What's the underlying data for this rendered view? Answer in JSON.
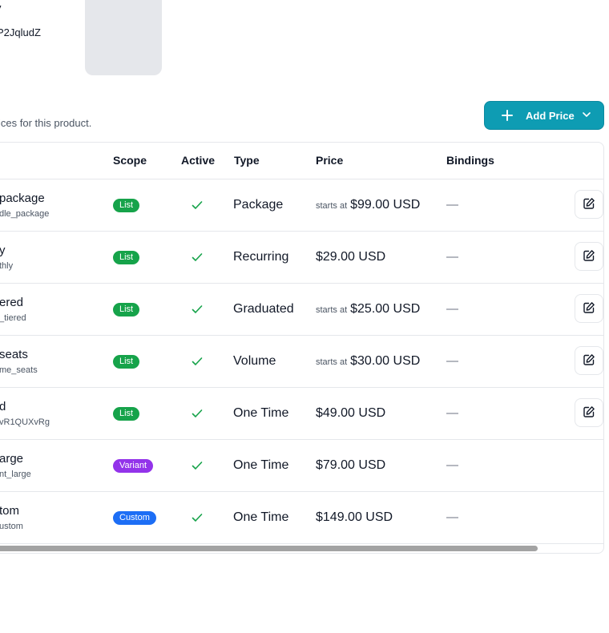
{
  "header": {
    "title": "y",
    "id": "P2JqludZ"
  },
  "subtitle": "ices for this product.",
  "add_price_button": {
    "label": "Add Price"
  },
  "table": {
    "columns": [
      "Scope",
      "Active",
      "Type",
      "Price",
      "Bindings"
    ],
    "rows": [
      {
        "name": "package",
        "lookup": "dle_package",
        "scope": "List",
        "active": true,
        "type": "Package",
        "starts_at": "starts at",
        "price": "$99.00 USD",
        "bindings": "—",
        "editable": true
      },
      {
        "name": "y",
        "lookup": "thly",
        "scope": "List",
        "active": true,
        "type": "Recurring",
        "starts_at": "",
        "price": "$29.00 USD",
        "bindings": "—",
        "editable": true
      },
      {
        "name": "ered",
        "lookup": "_tiered",
        "scope": "List",
        "active": true,
        "type": "Graduated",
        "starts_at": "starts at",
        "price": "$25.00 USD",
        "bindings": "—",
        "editable": true
      },
      {
        "name": "seats",
        "lookup": "me_seats",
        "scope": "List",
        "active": true,
        "type": "Volume",
        "starts_at": "starts at",
        "price": "$30.00 USD",
        "bindings": "—",
        "editable": true
      },
      {
        "name": "d",
        "lookup": "vR1QUXvRg",
        "scope": "List",
        "active": true,
        "type": "One Time",
        "starts_at": "",
        "price": "$49.00 USD",
        "bindings": "—",
        "editable": true
      },
      {
        "name": "arge",
        "lookup": "nt_large",
        "scope": "Variant",
        "active": true,
        "type": "One Time",
        "starts_at": "",
        "price": "$79.00 USD",
        "bindings": "—",
        "editable": false
      },
      {
        "name": "tom",
        "lookup": "ustom",
        "scope": "Custom",
        "active": true,
        "type": "One Time",
        "starts_at": "",
        "price": "$149.00 USD",
        "bindings": "—",
        "editable": false
      }
    ]
  },
  "icons": {
    "add": "plus-icon",
    "dropdown": "chevron-down-icon",
    "active": "check-icon",
    "edit": "edit-icon"
  },
  "colors": {
    "accent": "#0e9cb3",
    "list_badge": "#16a34a",
    "variant_badge": "#9333ea",
    "custom_badge": "#1d6ef5",
    "check": "#16a34a"
  }
}
